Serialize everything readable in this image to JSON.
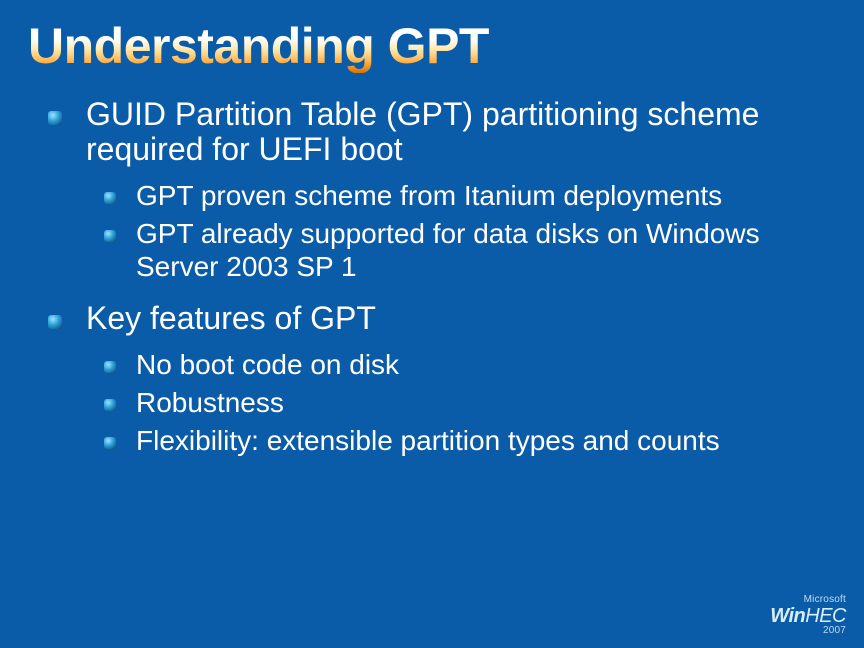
{
  "background_color": "#0b5ca8",
  "text_color": "#ffffff",
  "title": {
    "text": "Understanding GPT",
    "fontsize": 50,
    "gradient_stops": [
      "#ffffff",
      "#ffe9ad",
      "#ffb34d",
      "#d97200"
    ]
  },
  "bullets_lvl1_fontsize": 32,
  "bullets_lvl2_fontsize": 28,
  "bullet_marker_gradient": [
    "#9fe4ff",
    "#29a0d8",
    "#0b3e6a"
  ],
  "content": [
    {
      "text": "GUID Partition Table (GPT) partitioning scheme required for UEFI boot",
      "children": [
        {
          "text": "GPT proven scheme from Itanium deployments"
        },
        {
          "text": "GPT already supported for data disks on Windows Server 2003 SP 1"
        }
      ]
    },
    {
      "text": "Key features of GPT",
      "children": [
        {
          "text": "No boot code on disk"
        },
        {
          "text": "Robustness"
        },
        {
          "text": "Flexibility:  extensible partition types and counts"
        }
      ]
    }
  ],
  "branding": {
    "company": "Microsoft",
    "product_prefix": "Win",
    "product_suffix": "HEC",
    "year": "2007"
  }
}
